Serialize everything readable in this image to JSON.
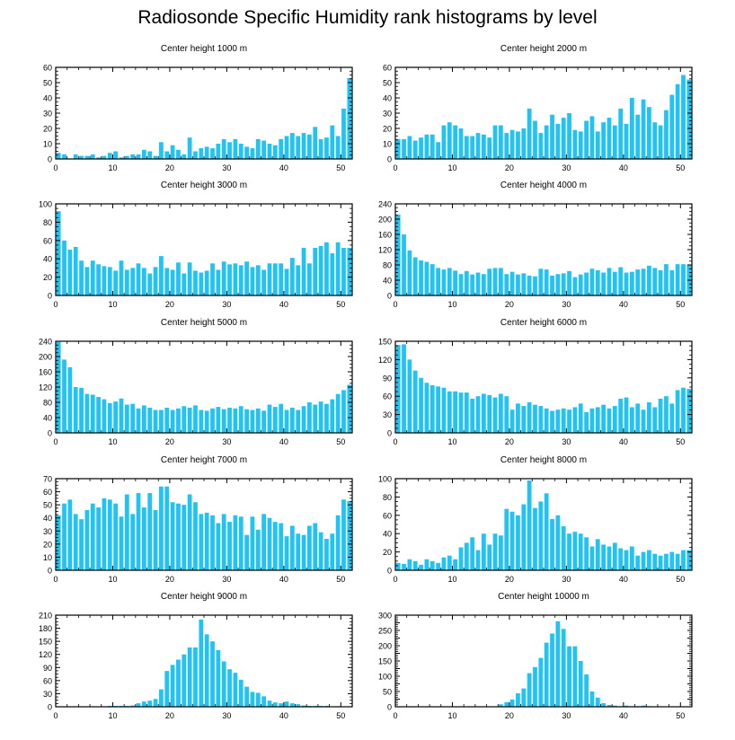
{
  "title": "Radiosonde Specific Humidity rank histograms by level",
  "colors": {
    "bar": "#1fc3f5",
    "axis": "#000000"
  },
  "chart_data": [
    {
      "type": "bar",
      "title": "Center height 1000 m",
      "ylim": [
        0,
        60
      ],
      "yticks": [
        0,
        10,
        20,
        30,
        40,
        50,
        60
      ],
      "xlim": [
        0,
        52
      ],
      "xticks": [
        0,
        10,
        20,
        30,
        40,
        50
      ],
      "values": [
        4,
        3,
        0,
        3,
        2,
        2,
        3,
        1,
        2,
        4,
        5,
        1,
        2,
        3,
        3,
        6,
        5,
        2,
        11,
        5,
        9,
        6,
        3,
        14,
        5,
        7,
        8,
        7,
        10,
        13,
        11,
        13,
        10,
        8,
        7,
        13,
        12,
        10,
        9,
        13,
        15,
        17,
        15,
        17,
        16,
        21,
        13,
        14,
        22,
        15,
        33,
        53
      ]
    },
    {
      "type": "bar",
      "title": "Center height 2000 m",
      "ylim": [
        0,
        60
      ],
      "yticks": [
        0,
        10,
        20,
        30,
        40,
        50,
        60
      ],
      "xlim": [
        0,
        52
      ],
      "xticks": [
        0,
        10,
        20,
        30,
        40,
        50
      ],
      "values": [
        13,
        13,
        15,
        12,
        14,
        16,
        16,
        11,
        22,
        24,
        22,
        20,
        15,
        15,
        17,
        16,
        14,
        22,
        22,
        17,
        19,
        18,
        20,
        33,
        25,
        17,
        22,
        29,
        23,
        27,
        30,
        19,
        18,
        25,
        28,
        18,
        24,
        27,
        22,
        33,
        23,
        40,
        29,
        39,
        34,
        24,
        22,
        32,
        42,
        49,
        55,
        52
      ]
    },
    {
      "type": "bar",
      "title": "Center height 3000 m",
      "ylim": [
        0,
        100
      ],
      "yticks": [
        0,
        20,
        40,
        60,
        80,
        100
      ],
      "xlim": [
        0,
        52
      ],
      "xticks": [
        0,
        10,
        20,
        30,
        40,
        50
      ],
      "values": [
        92,
        60,
        50,
        53,
        38,
        31,
        38,
        34,
        32,
        31,
        27,
        38,
        28,
        30,
        35,
        30,
        24,
        31,
        43,
        30,
        28,
        36,
        24,
        36,
        27,
        25,
        27,
        35,
        28,
        37,
        34,
        35,
        33,
        37,
        31,
        33,
        28,
        35,
        35,
        35,
        29,
        41,
        33,
        52,
        35,
        52,
        54,
        58,
        46,
        58,
        52,
        52
      ]
    },
    {
      "type": "bar",
      "title": "Center height 4000 m",
      "ylim": [
        0,
        240
      ],
      "yticks": [
        0,
        40,
        80,
        120,
        160,
        200,
        240
      ],
      "xlim": [
        0,
        52
      ],
      "xticks": [
        0,
        10,
        20,
        30,
        40,
        50
      ],
      "values": [
        212,
        160,
        118,
        100,
        92,
        88,
        82,
        72,
        68,
        72,
        65,
        56,
        64,
        55,
        60,
        56,
        70,
        72,
        72,
        56,
        62,
        55,
        58,
        52,
        50,
        70,
        68,
        52,
        56,
        58,
        64,
        48,
        55,
        60,
        70,
        66,
        60,
        72,
        62,
        74,
        60,
        62,
        68,
        70,
        78,
        72,
        66,
        82,
        66,
        82,
        82,
        80
      ]
    },
    {
      "type": "bar",
      "title": "Center height 5000 m",
      "ylim": [
        0,
        240
      ],
      "yticks": [
        0,
        40,
        80,
        120,
        160,
        200,
        240
      ],
      "xlim": [
        0,
        52
      ],
      "xticks": [
        0,
        10,
        20,
        30,
        40,
        50
      ],
      "values": [
        238,
        192,
        172,
        120,
        118,
        102,
        100,
        94,
        88,
        78,
        82,
        90,
        74,
        76,
        64,
        72,
        66,
        60,
        60,
        66,
        60,
        64,
        70,
        66,
        72,
        60,
        58,
        64,
        68,
        62,
        66,
        64,
        70,
        62,
        60,
        64,
        58,
        74,
        68,
        76,
        60,
        66,
        60,
        70,
        80,
        74,
        82,
        76,
        88,
        102,
        112,
        126
      ]
    },
    {
      "type": "bar",
      "title": "Center height 6000 m",
      "ylim": [
        0,
        150
      ],
      "yticks": [
        0,
        30,
        60,
        90,
        120,
        150
      ],
      "xlim": [
        0,
        52
      ],
      "xticks": [
        0,
        10,
        20,
        30,
        40,
        50
      ],
      "values": [
        144,
        145,
        120,
        102,
        90,
        82,
        78,
        76,
        74,
        68,
        68,
        66,
        66,
        56,
        60,
        64,
        62,
        58,
        64,
        60,
        38,
        48,
        44,
        50,
        46,
        44,
        40,
        36,
        38,
        40,
        38,
        42,
        48,
        34,
        40,
        42,
        46,
        40,
        44,
        56,
        58,
        42,
        48,
        38,
        50,
        42,
        56,
        60,
        48,
        70,
        74,
        72
      ]
    },
    {
      "type": "bar",
      "title": "Center height 7000 m",
      "ylim": [
        0,
        70
      ],
      "yticks": [
        0,
        10,
        20,
        30,
        40,
        50,
        60,
        70
      ],
      "xlim": [
        0,
        52
      ],
      "xticks": [
        0,
        10,
        20,
        30,
        40,
        50
      ],
      "values": [
        42,
        51,
        54,
        43,
        39,
        46,
        51,
        48,
        55,
        54,
        51,
        41,
        58,
        43,
        59,
        48,
        59,
        46,
        64,
        64,
        52,
        51,
        50,
        58,
        52,
        43,
        44,
        42,
        36,
        43,
        37,
        42,
        41,
        27,
        41,
        31,
        43,
        40,
        37,
        36,
        26,
        34,
        28,
        27,
        34,
        36,
        29,
        24,
        28,
        42,
        54,
        53
      ]
    },
    {
      "type": "bar",
      "title": "Center height 8000 m",
      "ylim": [
        0,
        100
      ],
      "yticks": [
        0,
        20,
        40,
        60,
        80,
        100
      ],
      "xlim": [
        0,
        52
      ],
      "xticks": [
        0,
        10,
        20,
        30,
        40,
        50
      ],
      "values": [
        8,
        7,
        12,
        10,
        6,
        12,
        10,
        8,
        14,
        16,
        12,
        25,
        30,
        36,
        22,
        40,
        28,
        40,
        38,
        67,
        64,
        60,
        72,
        98,
        68,
        75,
        84,
        56,
        60,
        48,
        40,
        42,
        40,
        36,
        26,
        34,
        28,
        26,
        30,
        24,
        22,
        26,
        16,
        20,
        22,
        18,
        16,
        18,
        20,
        18,
        22,
        22
      ]
    },
    {
      "type": "bar",
      "title": "Center height 9000 m",
      "ylim": [
        0,
        210
      ],
      "yticks": [
        0,
        30,
        60,
        90,
        120,
        150,
        180,
        210
      ],
      "xlim": [
        0,
        52
      ],
      "xticks": [
        0,
        10,
        20,
        30,
        40,
        50
      ],
      "values": [
        0,
        0,
        0,
        0,
        0,
        0,
        0,
        0,
        0,
        2,
        2,
        2,
        2,
        3,
        8,
        12,
        14,
        18,
        40,
        82,
        96,
        108,
        120,
        136,
        136,
        200,
        166,
        150,
        130,
        104,
        86,
        78,
        62,
        46,
        34,
        32,
        24,
        14,
        10,
        8,
        12,
        8,
        6,
        3,
        2,
        2,
        2,
        2,
        0,
        0,
        0,
        0
      ]
    },
    {
      "type": "bar",
      "title": "Center height 10000 m",
      "ylim": [
        0,
        300
      ],
      "yticks": [
        0,
        25,
        50,
        75,
        100,
        125,
        150,
        175,
        200,
        225,
        250,
        275,
        300
      ],
      "ytick_labels": [
        "0",
        "",
        "50",
        "",
        "100",
        "",
        "150",
        "",
        "200",
        "",
        "250",
        "",
        "300"
      ],
      "xlim": [
        0,
        52
      ],
      "xticks": [
        0,
        10,
        20,
        30,
        40,
        50
      ],
      "values": [
        0,
        0,
        0,
        0,
        0,
        0,
        0,
        0,
        0,
        0,
        0,
        0,
        0,
        0,
        0,
        0,
        0,
        0,
        8,
        15,
        24,
        44,
        60,
        110,
        130,
        160,
        210,
        240,
        280,
        255,
        198,
        198,
        150,
        106,
        50,
        30,
        12,
        6,
        4,
        2,
        4,
        2,
        2,
        4,
        2,
        0,
        0,
        0,
        0,
        0,
        0,
        0
      ]
    }
  ]
}
